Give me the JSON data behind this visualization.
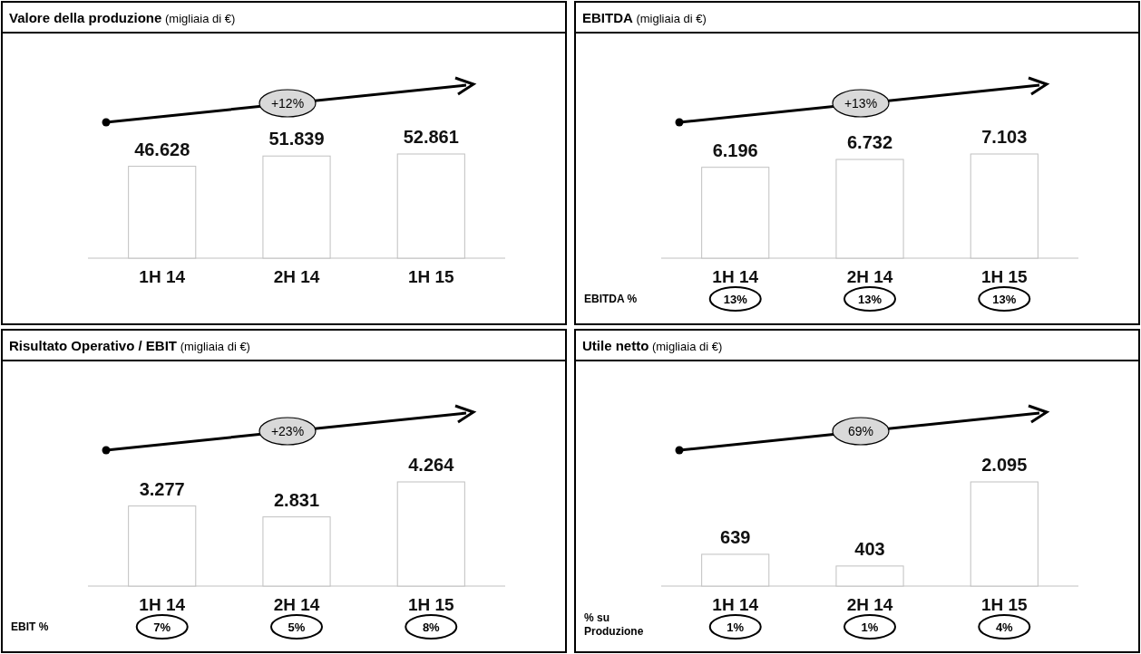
{
  "chart_data": [
    {
      "type": "bar",
      "title": "Valore della produzione",
      "subtitle": "(migliaia di €)",
      "categories": [
        "1H 14",
        "2H 14",
        "1H 15"
      ],
      "values": [
        46628,
        51839,
        52861
      ],
      "value_labels": [
        "46.628",
        "51.839",
        "52.861"
      ],
      "color": "#c0c0c0",
      "annotations": [
        "+12%"
      ]
    },
    {
      "type": "bar",
      "title": "EBITDA",
      "subtitle": "(migliaia  di €)",
      "categories": [
        "1H 14",
        "2H 14",
        "1H 15"
      ],
      "values": [
        6196,
        6732,
        7103
      ],
      "value_labels": [
        "6.196",
        "6.732",
        "7.103"
      ],
      "color": "#c0c0c0",
      "annotations": [
        "+13%",
        "EBITDA %",
        "13%",
        "13%",
        "13%"
      ]
    },
    {
      "type": "bar",
      "title": "Risultato Operativo / EBIT",
      "subtitle": "(migliaia  di €)",
      "categories": [
        "1H 14",
        "2H 14",
        "1H 15"
      ],
      "values": [
        3277,
        2831,
        4264
      ],
      "value_labels": [
        "3.277",
        "2.831",
        "4.264"
      ],
      "color": "#c0c0c0",
      "annotations": [
        "+23%",
        "EBIT %",
        "7%",
        "5%",
        "8%"
      ]
    },
    {
      "type": "bar",
      "title": "Utile netto",
      "subtitle": "(migliaia  di €)",
      "categories": [
        "1H 14",
        "2H 14",
        "1H 15"
      ],
      "values": [
        639,
        403,
        2095
      ],
      "value_labels": [
        "639",
        "403",
        "2.095"
      ],
      "color": "#c0c0c0",
      "annotations": [
        "69%",
        "% su Produzione",
        "1%",
        "1%",
        "4%"
      ]
    }
  ]
}
